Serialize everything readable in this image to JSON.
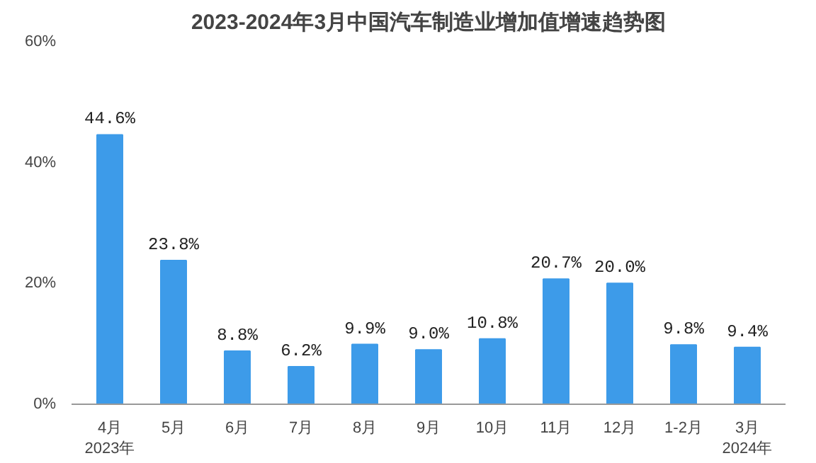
{
  "chart_data": {
    "type": "bar",
    "title": "2023-2024年3月中国汽车制造业增加值增速趋势图",
    "categories": [
      "4月",
      "5月",
      "6月",
      "7月",
      "8月",
      "9月",
      "10月",
      "11月",
      "12月",
      "1-2月",
      "3月"
    ],
    "series": [
      {
        "color": "#3d9be9",
        "values": [
          44.6,
          23.8,
          8.8,
          6.2,
          9.9,
          9.0,
          10.8,
          20.7,
          20.0,
          9.8,
          9.4
        ]
      }
    ],
    "value_labels": [
      "44.6%",
      "23.8%",
      "8.8%",
      "6.2%",
      "9.9%",
      "9.0%",
      "10.8%",
      "20.7%",
      "20.0%",
      "9.8%",
      "9.4%"
    ],
    "ylim": [
      0,
      60
    ],
    "yticks": [
      {
        "value": 0,
        "label": "0%"
      },
      {
        "value": 20,
        "label": "20%"
      },
      {
        "value": 40,
        "label": "40%"
      },
      {
        "value": 60,
        "label": "60%"
      }
    ],
    "grid": false,
    "annotations": [
      "2023年",
      "2024年"
    ]
  }
}
